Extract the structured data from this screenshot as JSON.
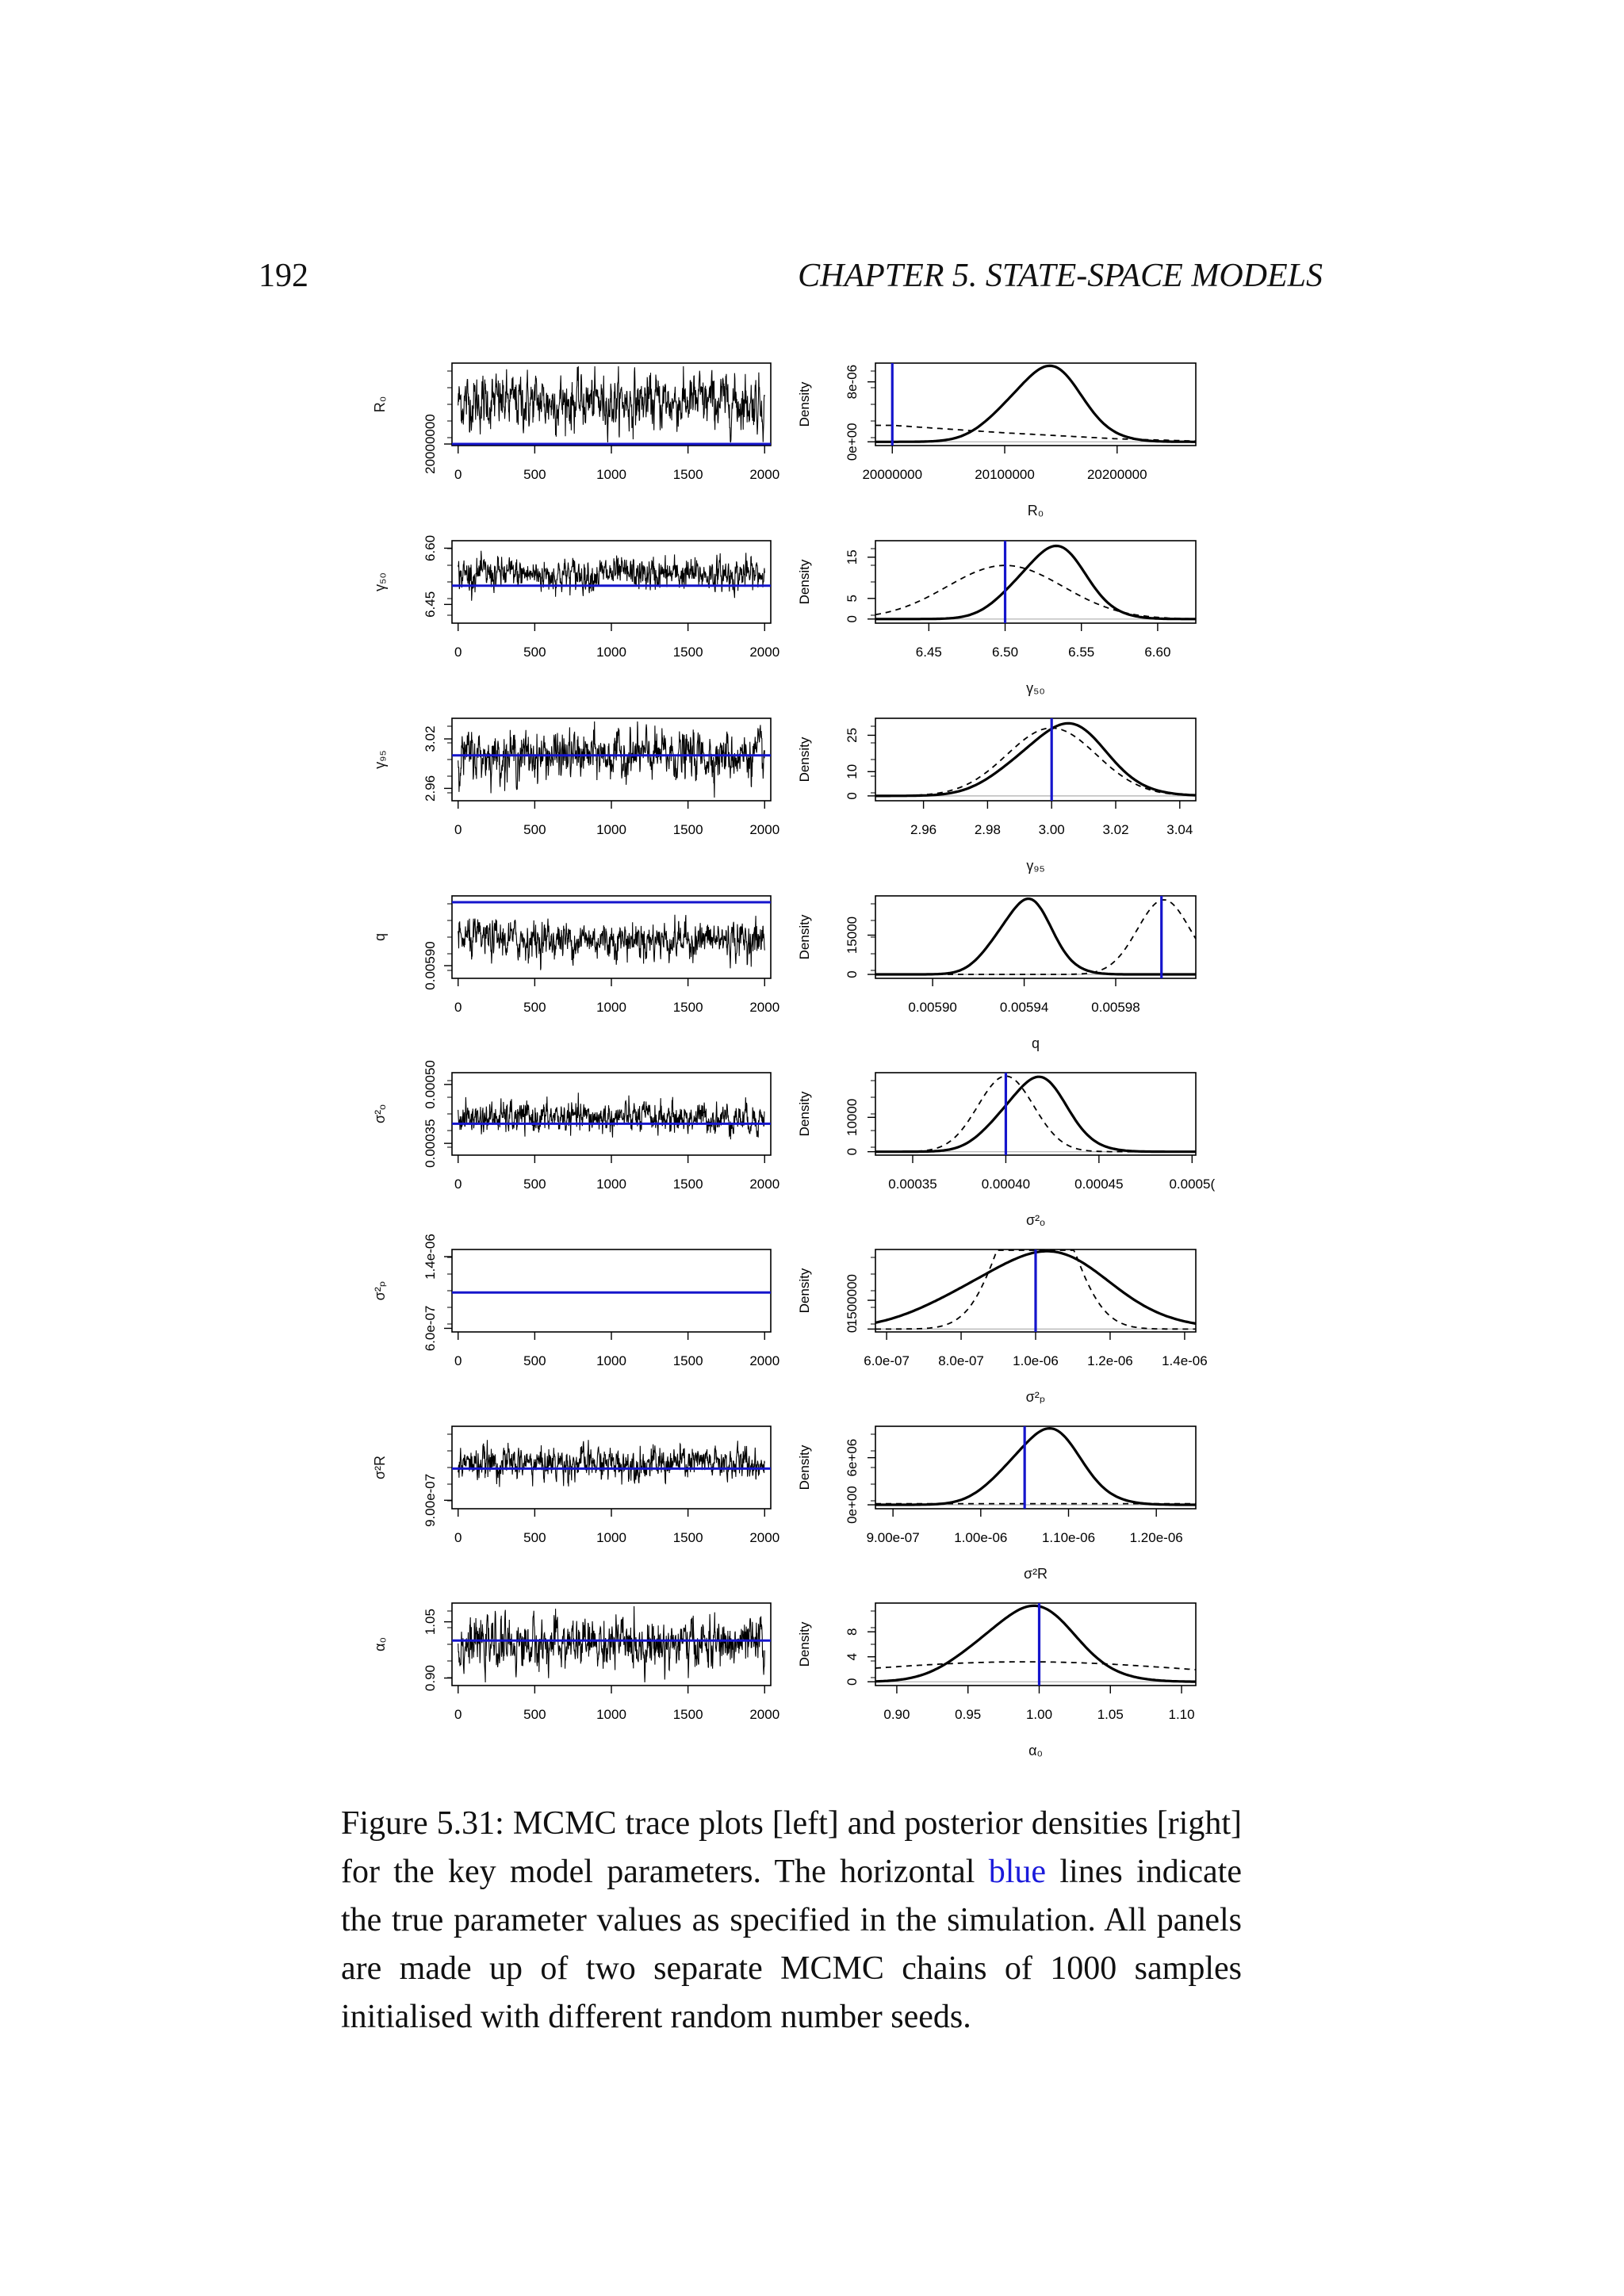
{
  "page": {
    "number": "192",
    "running_head": "CHAPTER 5.  STATE-SPACE MODELS"
  },
  "caption": {
    "label": "Figure 5.31:",
    "text_before": " MCMC trace plots [left] and posterior densities [right] for the key model parameters. The horizontal ",
    "link_text": "blue",
    "text_after": " lines indicate the true parameter values as specified in the simulation. All panels are made up of two separate MCMC chains of 1000 samples initialised with different random number seeds."
  },
  "colors": {
    "true_value": "#1515cc",
    "trace": "#000000",
    "prior": "#000000",
    "baseline": "#bbbbbb"
  },
  "chart_data": [
    {
      "type": "line",
      "rows": [
        {
          "param": "R₀",
          "trace": {
            "ylabel": "R₀",
            "yticks": [
              20000000
            ],
            "ytick_labels": [
              "20000000"
            ],
            "ylim": [
              19995000,
              20260000
            ],
            "mean": 20135000,
            "sd": 40000,
            "true_value": 20000000,
            "xticks": [
              0,
              500,
              1000,
              1500,
              2000
            ],
            "xlim": [
              -40,
              2040
            ]
          },
          "density": {
            "xlabel": "R₀",
            "ylabel": "Density",
            "xlim": [
              19985000,
              20270000
            ],
            "xticks": [
              20000000,
              20100000,
              20200000
            ],
            "xtick_labels": [
              "20000000",
              "20100000",
              "20200000"
            ],
            "yticks": [
              0,
              8e-06
            ],
            "ytick_labels": [
              "0e+00",
              "8e-06"
            ],
            "ylim": [
              -5e-07,
              1.05e-05
            ],
            "posterior": {
              "mean": 20135000,
              "sd": 32000,
              "peak": 1e-05
            },
            "prior": {
              "x": [
                19985000,
                20000000,
                20050000,
                20100000,
                20150000,
                20200000,
                20270000
              ],
              "y": [
                2.2e-06,
                2.2e-06,
                1.7e-06,
                1.2e-06,
                8e-07,
                4e-07,
                1e-07
              ]
            },
            "true_value": 20000000
          }
        },
        {
          "param": "γ₅₀",
          "trace": {
            "ylabel": "γ₅₀",
            "yticks": [
              6.45,
              6.6
            ],
            "ytick_labels": [
              "6.45",
              "6.60"
            ],
            "ylim": [
              6.4,
              6.62
            ],
            "mean": 6.53,
            "sd": 0.02,
            "true_value": 6.5,
            "xticks": [
              0,
              500,
              1000,
              1500,
              2000
            ],
            "xlim": [
              -40,
              2040
            ]
          },
          "density": {
            "xlabel": "γ₅₀",
            "ylabel": "Density",
            "xlim": [
              6.415,
              6.625
            ],
            "xticks": [
              6.45,
              6.5,
              6.55,
              6.6
            ],
            "xtick_labels": [
              "6.45",
              "6.50",
              "6.55",
              "6.60"
            ],
            "yticks": [
              0,
              5,
              15
            ],
            "ytick_labels": [
              "0",
              "5",
              "15"
            ],
            "ylim": [
              -1,
              19
            ],
            "posterior": {
              "mean": 6.53,
              "sd": 0.022,
              "peak": 17.5
            },
            "prior": {
              "mean": 6.5,
              "sd": 0.038,
              "peak": 13
            },
            "true_value": 6.5
          }
        },
        {
          "param": "γ₉₅",
          "trace": {
            "ylabel": "γ₉₅",
            "yticks": [
              2.96,
              3.02
            ],
            "ytick_labels": [
              "2.96",
              "3.02"
            ],
            "ylim": [
              2.945,
              3.045
            ],
            "mean": 3.0,
            "sd": 0.013,
            "true_value": 3.0,
            "xticks": [
              0,
              500,
              1000,
              1500,
              2000
            ],
            "xlim": [
              -40,
              2040
            ]
          },
          "density": {
            "xlabel": "γ₉₅",
            "ylabel": "Density",
            "xlim": [
              2.945,
              3.045
            ],
            "xticks": [
              2.96,
              2.98,
              3.0,
              3.02,
              3.04
            ],
            "xtick_labels": [
              "2.96",
              "2.98",
              "3.00",
              "3.02",
              "3.04"
            ],
            "yticks": [
              0,
              10,
              25
            ],
            "ytick_labels": [
              "0",
              "10",
              "25"
            ],
            "ylim": [
              -2,
              32
            ],
            "posterior": {
              "mean": 3.003,
              "sd": 0.0135,
              "peak": 29.5
            },
            "prior": {
              "mean": 3.0,
              "sd": 0.014,
              "peak": 28
            },
            "true_value": 3.0
          }
        },
        {
          "param": "q",
          "trace": {
            "ylabel": "q",
            "yticks": [
              0.0059
            ],
            "ytick_labels": [
              "0.00590"
            ],
            "ylim": [
              0.00588,
              0.00601
            ],
            "mean": 0.005941,
            "sd": 1.35e-05,
            "true_value": 0.006,
            "xticks": [
              0,
              500,
              1000,
              1500,
              2000
            ],
            "xlim": [
              -40,
              2040
            ]
          },
          "density": {
            "xlabel": "q",
            "ylabel": "Density",
            "xlim": [
              0.005875,
              0.006015
            ],
            "xticks": [
              0.0059,
              0.00594,
              0.00598
            ],
            "xtick_labels": [
              "0.00590",
              "0.00594",
              "0.00598"
            ],
            "yticks": [
              0,
              15000
            ],
            "ytick_labels": [
              "0",
              "15000"
            ],
            "ylim": [
              -1500,
              30000
            ],
            "posterior": {
              "mean": 0.00594,
              "sd": 1.15e-05,
              "peak": 28500
            },
            "prior": {
              "mean": 0.006001,
              "sd": 1.15e-05,
              "peak": 28500
            },
            "true_value": 0.006
          }
        },
        {
          "param": "σ²ₒ",
          "trace": {
            "ylabel": "σ²ₒ",
            "yticks": [
              0.00035,
              0.0005
            ],
            "ytick_labels": [
              "0.00035",
              "0.00050"
            ],
            "ylim": [
              0.00032,
              0.00053
            ],
            "mean": 0.000415,
            "sd": 1.8e-05,
            "true_value": 0.0004,
            "xticks": [
              0,
              500,
              1000,
              1500,
              2000
            ],
            "xlim": [
              -40,
              2040
            ]
          },
          "density": {
            "xlabel": "σ²ₒ",
            "ylabel": "Density",
            "xlim": [
              0.00033,
              0.000502
            ],
            "xticks": [
              0.00035,
              0.0004,
              0.00045,
              0.0005
            ],
            "xtick_labels": [
              "0.00035",
              "0.00040",
              "0.00045",
              "0.0005("
            ],
            "yticks": [
              0,
              10000
            ],
            "ytick_labels": [
              "0",
              "10000"
            ],
            "ylim": [
              -1000,
              23000
            ],
            "posterior": {
              "mean": 0.000415,
              "sd": 1.7e-05,
              "peak": 21500
            },
            "prior": {
              "mean": 0.0004,
              "sd": 1.5e-05,
              "peak": 22000
            },
            "true_value": 0.0004
          }
        },
        {
          "param": "σ²ₚ",
          "trace": {
            "ylabel": "σ²ₚ",
            "yticks": [
              6e-07,
              1.4e-06
            ],
            "ytick_labels": [
              "6.0e-07",
              "1.4e-06"
            ],
            "ylim": [
              5.6e-07,
              1.48e-06
            ],
            "mean": 1e-06,
            "sd": 0,
            "true_value": 1e-06,
            "xticks": [
              0,
              500,
              1000,
              1500,
              2000
            ],
            "xlim": [
              -40,
              2040
            ]
          },
          "density": {
            "xlabel": "σ²ₚ",
            "ylabel": "Density",
            "xlim": [
              5.7e-07,
              1.43e-06
            ],
            "xticks": [
              6e-07,
              8e-07,
              1e-06,
              1.2e-06,
              1.4e-06
            ],
            "xtick_labels": [
              "6.0e-07",
              "8.0e-07",
              "1.0e-06",
              "1.2e-06",
              "1.4e-06"
            ],
            "yticks": [
              0,
              1500000
            ],
            "ytick_labels": [
              "0",
              "1500000"
            ],
            "ylim": [
              -150000,
              4150000
            ],
            "posterior": {
              "mean": 1e-06,
              "sd": 1.9e-07,
              "peak": 4000000
            },
            "prior": {
              "mean": 1e-06,
              "sd": 9e-08,
              "peak": 8000000
            },
            "true_value": 1e-06
          }
        },
        {
          "param": "σ²R",
          "trace": {
            "ylabel": "σ²R",
            "yticks": [
              9e-07
            ],
            "ytick_labels": [
              "9.00e-07"
            ],
            "ylim": [
              8.6e-07,
              1.25e-06
            ],
            "mean": 1.075e-06,
            "sd": 3.6e-08,
            "true_value": 1.05e-06,
            "xticks": [
              0,
              500,
              1000,
              1500,
              2000
            ],
            "xlim": [
              -40,
              2040
            ]
          },
          "density": {
            "xlabel": "σ²R",
            "ylabel": "Density",
            "xlim": [
              8.8e-07,
              1.245e-06
            ],
            "xticks": [
              9e-07,
              1e-06,
              1.1e-06,
              1.2e-06
            ],
            "xtick_labels": [
              "9.00e-07",
              "1.00e-06",
              "1.10e-06",
              "1.20e-06"
            ],
            "yticks": [
              0,
              6000000.0
            ],
            "ytick_labels": [
              "0e+00",
              "6e+06"
            ],
            "ylim": [
              -500000,
              10000000
            ],
            "posterior": {
              "mean": 1.072e-06,
              "sd": 4e-08,
              "peak": 9600000
            },
            "prior": {
              "x": [
                8.8e-07,
                1.245e-06
              ],
              "y": [
                150000,
                150000
              ]
            },
            "true_value": 1.05e-06
          }
        },
        {
          "param": "α₀",
          "trace": {
            "ylabel": "α₀",
            "yticks": [
              0.9,
              1.05
            ],
            "ytick_labels": [
              "0.90",
              "1.05"
            ],
            "ylim": [
              0.88,
              1.1
            ],
            "mean": 0.99,
            "sd": 0.03,
            "true_value": 1.0,
            "xticks": [
              0,
              500,
              1000,
              1500,
              2000
            ],
            "xlim": [
              -40,
              2040
            ]
          },
          "density": {
            "xlabel": "α₀",
            "ylabel": "Density",
            "xlim": [
              0.885,
              1.11
            ],
            "xticks": [
              0.9,
              0.95,
              1.0,
              1.05,
              1.1
            ],
            "xtick_labels": [
              "0.90",
              "0.95",
              "1.00",
              "1.05",
              "1.10"
            ],
            "yticks": [
              0,
              4,
              8
            ],
            "ytick_labels": [
              "0",
              "4",
              "8"
            ],
            "ylim": [
              -0.6,
              12.6
            ],
            "posterior": {
              "mean": 0.991,
              "sd": 0.033,
              "peak": 12
            },
            "prior": {
              "mean": 0.99,
              "sd": 0.12,
              "peak": 3.2
            },
            "true_value": 1.0
          }
        }
      ]
    }
  ]
}
